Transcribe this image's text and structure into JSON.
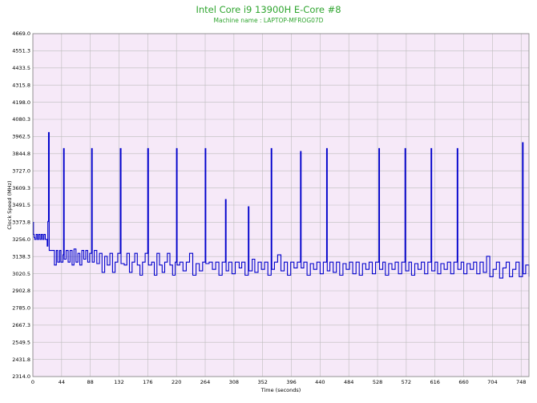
{
  "chart_data": {
    "type": "line",
    "title": "Intel Core i9 13900H E-Core #8",
    "subtitle": "Machine name : LAPTOP-MFROG07D",
    "xlabel": "Time (seconds)",
    "ylabel": "Clock Speed (MHz)",
    "xlim": [
      0,
      760
    ],
    "ylim": [
      2314.0,
      4669.0
    ],
    "x_ticks": [
      0,
      44,
      88,
      132,
      176,
      220,
      264,
      308,
      352,
      396,
      440,
      484,
      528,
      572,
      616,
      660,
      704,
      748
    ],
    "y_ticks": [
      "2314.0",
      "2431.8",
      "2549.5",
      "2667.3",
      "2785.0",
      "2902.8",
      "3020.5",
      "3138.3",
      "3256.0",
      "3373.8",
      "3491.5",
      "3609.3",
      "3727.0",
      "3844.8",
      "3962.5",
      "4080.3",
      "4198.0",
      "4315.8",
      "4433.5",
      "4551.3",
      "4669.0"
    ],
    "grid": true,
    "colors": {
      "plot_bg": "#f6e9f8",
      "grid": "#bdbdbd",
      "series": "#0000cc",
      "title": "#2fa52f"
    },
    "series": [
      {
        "values": [
          [
            0,
            3373
          ],
          [
            1,
            3290
          ],
          [
            2,
            3270
          ],
          [
            3,
            3256
          ],
          [
            5,
            3290
          ],
          [
            7,
            3256
          ],
          [
            9,
            3290
          ],
          [
            11,
            3256
          ],
          [
            13,
            3290
          ],
          [
            15,
            3256
          ],
          [
            17,
            3290
          ],
          [
            19,
            3256
          ],
          [
            21,
            3256
          ],
          [
            22,
            3210
          ],
          [
            23,
            3380
          ],
          [
            24,
            3990
          ],
          [
            25,
            3180
          ],
          [
            27,
            3180
          ],
          [
            31,
            3180
          ],
          [
            33,
            3080
          ],
          [
            36,
            3180
          ],
          [
            38,
            3100
          ],
          [
            41,
            3180
          ],
          [
            43,
            3100
          ],
          [
            46,
            3150
          ],
          [
            47,
            3880
          ],
          [
            48,
            3120
          ],
          [
            51,
            3180
          ],
          [
            54,
            3100
          ],
          [
            57,
            3180
          ],
          [
            60,
            3080
          ],
          [
            63,
            3190
          ],
          [
            66,
            3100
          ],
          [
            69,
            3160
          ],
          [
            72,
            3080
          ],
          [
            75,
            3180
          ],
          [
            78,
            3120
          ],
          [
            81,
            3180
          ],
          [
            84,
            3100
          ],
          [
            87,
            3160
          ],
          [
            90,
            3880
          ],
          [
            91,
            3100
          ],
          [
            94,
            3180
          ],
          [
            98,
            3090
          ],
          [
            102,
            3160
          ],
          [
            106,
            3030
          ],
          [
            110,
            3140
          ],
          [
            114,
            3080
          ],
          [
            118,
            3160
          ],
          [
            122,
            3030
          ],
          [
            126,
            3100
          ],
          [
            130,
            3160
          ],
          [
            134,
            3880
          ],
          [
            135,
            3090
          ],
          [
            140,
            3080
          ],
          [
            144,
            3160
          ],
          [
            148,
            3030
          ],
          [
            152,
            3100
          ],
          [
            156,
            3160
          ],
          [
            160,
            3080
          ],
          [
            164,
            3010
          ],
          [
            168,
            3100
          ],
          [
            172,
            3160
          ],
          [
            176,
            3880
          ],
          [
            177,
            3080
          ],
          [
            182,
            3100
          ],
          [
            186,
            3010
          ],
          [
            190,
            3160
          ],
          [
            194,
            3080
          ],
          [
            198,
            3030
          ],
          [
            202,
            3100
          ],
          [
            206,
            3160
          ],
          [
            210,
            3080
          ],
          [
            214,
            3010
          ],
          [
            218,
            3100
          ],
          [
            220,
            3880
          ],
          [
            221,
            3080
          ],
          [
            225,
            3100
          ],
          [
            230,
            3040
          ],
          [
            235,
            3100
          ],
          [
            240,
            3160
          ],
          [
            245,
            3010
          ],
          [
            250,
            3090
          ],
          [
            255,
            3040
          ],
          [
            260,
            3100
          ],
          [
            264,
            3880
          ],
          [
            265,
            3090
          ],
          [
            270,
            3100
          ],
          [
            275,
            3050
          ],
          [
            280,
            3100
          ],
          [
            285,
            3010
          ],
          [
            290,
            3100
          ],
          [
            295,
            3530
          ],
          [
            296,
            3040
          ],
          [
            300,
            3100
          ],
          [
            305,
            3020
          ],
          [
            310,
            3100
          ],
          [
            316,
            3060
          ],
          [
            320,
            3100
          ],
          [
            325,
            3010
          ],
          [
            330,
            3480
          ],
          [
            331,
            3040
          ],
          [
            336,
            3120
          ],
          [
            340,
            3030
          ],
          [
            345,
            3100
          ],
          [
            350,
            3050
          ],
          [
            355,
            3100
          ],
          [
            360,
            3010
          ],
          [
            365,
            3880
          ],
          [
            366,
            3050
          ],
          [
            370,
            3100
          ],
          [
            375,
            3150
          ],
          [
            380,
            3040
          ],
          [
            385,
            3100
          ],
          [
            390,
            3010
          ],
          [
            395,
            3100
          ],
          [
            400,
            3060
          ],
          [
            405,
            3100
          ],
          [
            410,
            3860
          ],
          [
            411,
            3060
          ],
          [
            415,
            3100
          ],
          [
            420,
            3010
          ],
          [
            425,
            3090
          ],
          [
            430,
            3050
          ],
          [
            435,
            3100
          ],
          [
            440,
            3020
          ],
          [
            445,
            3100
          ],
          [
            450,
            3880
          ],
          [
            451,
            3040
          ],
          [
            455,
            3100
          ],
          [
            460,
            3030
          ],
          [
            465,
            3100
          ],
          [
            470,
            3010
          ],
          [
            475,
            3090
          ],
          [
            480,
            3050
          ],
          [
            485,
            3100
          ],
          [
            490,
            3020
          ],
          [
            495,
            3100
          ],
          [
            500,
            3010
          ],
          [
            505,
            3090
          ],
          [
            510,
            3050
          ],
          [
            515,
            3100
          ],
          [
            520,
            3020
          ],
          [
            525,
            3100
          ],
          [
            530,
            3880
          ],
          [
            531,
            3050
          ],
          [
            536,
            3100
          ],
          [
            540,
            3010
          ],
          [
            545,
            3090
          ],
          [
            550,
            3050
          ],
          [
            555,
            3100
          ],
          [
            560,
            3020
          ],
          [
            565,
            3100
          ],
          [
            570,
            3880
          ],
          [
            571,
            3040
          ],
          [
            576,
            3100
          ],
          [
            580,
            3010
          ],
          [
            585,
            3090
          ],
          [
            590,
            3050
          ],
          [
            595,
            3100
          ],
          [
            600,
            3020
          ],
          [
            605,
            3100
          ],
          [
            610,
            3880
          ],
          [
            611,
            3040
          ],
          [
            616,
            3100
          ],
          [
            620,
            3020
          ],
          [
            625,
            3090
          ],
          [
            630,
            3050
          ],
          [
            635,
            3100
          ],
          [
            640,
            3020
          ],
          [
            645,
            3100
          ],
          [
            650,
            3880
          ],
          [
            651,
            3050
          ],
          [
            656,
            3100
          ],
          [
            660,
            3020
          ],
          [
            665,
            3090
          ],
          [
            670,
            3050
          ],
          [
            675,
            3100
          ],
          [
            680,
            3020
          ],
          [
            685,
            3100
          ],
          [
            690,
            3030
          ],
          [
            695,
            3140
          ],
          [
            700,
            3000
          ],
          [
            705,
            3050
          ],
          [
            710,
            3100
          ],
          [
            715,
            2990
          ],
          [
            720,
            3060
          ],
          [
            725,
            3100
          ],
          [
            730,
            3000
          ],
          [
            735,
            3050
          ],
          [
            740,
            3100
          ],
          [
            745,
            3000
          ],
          [
            750,
            3920
          ],
          [
            751,
            3020
          ],
          [
            755,
            3080
          ],
          [
            760,
            3000
          ]
        ]
      }
    ]
  }
}
